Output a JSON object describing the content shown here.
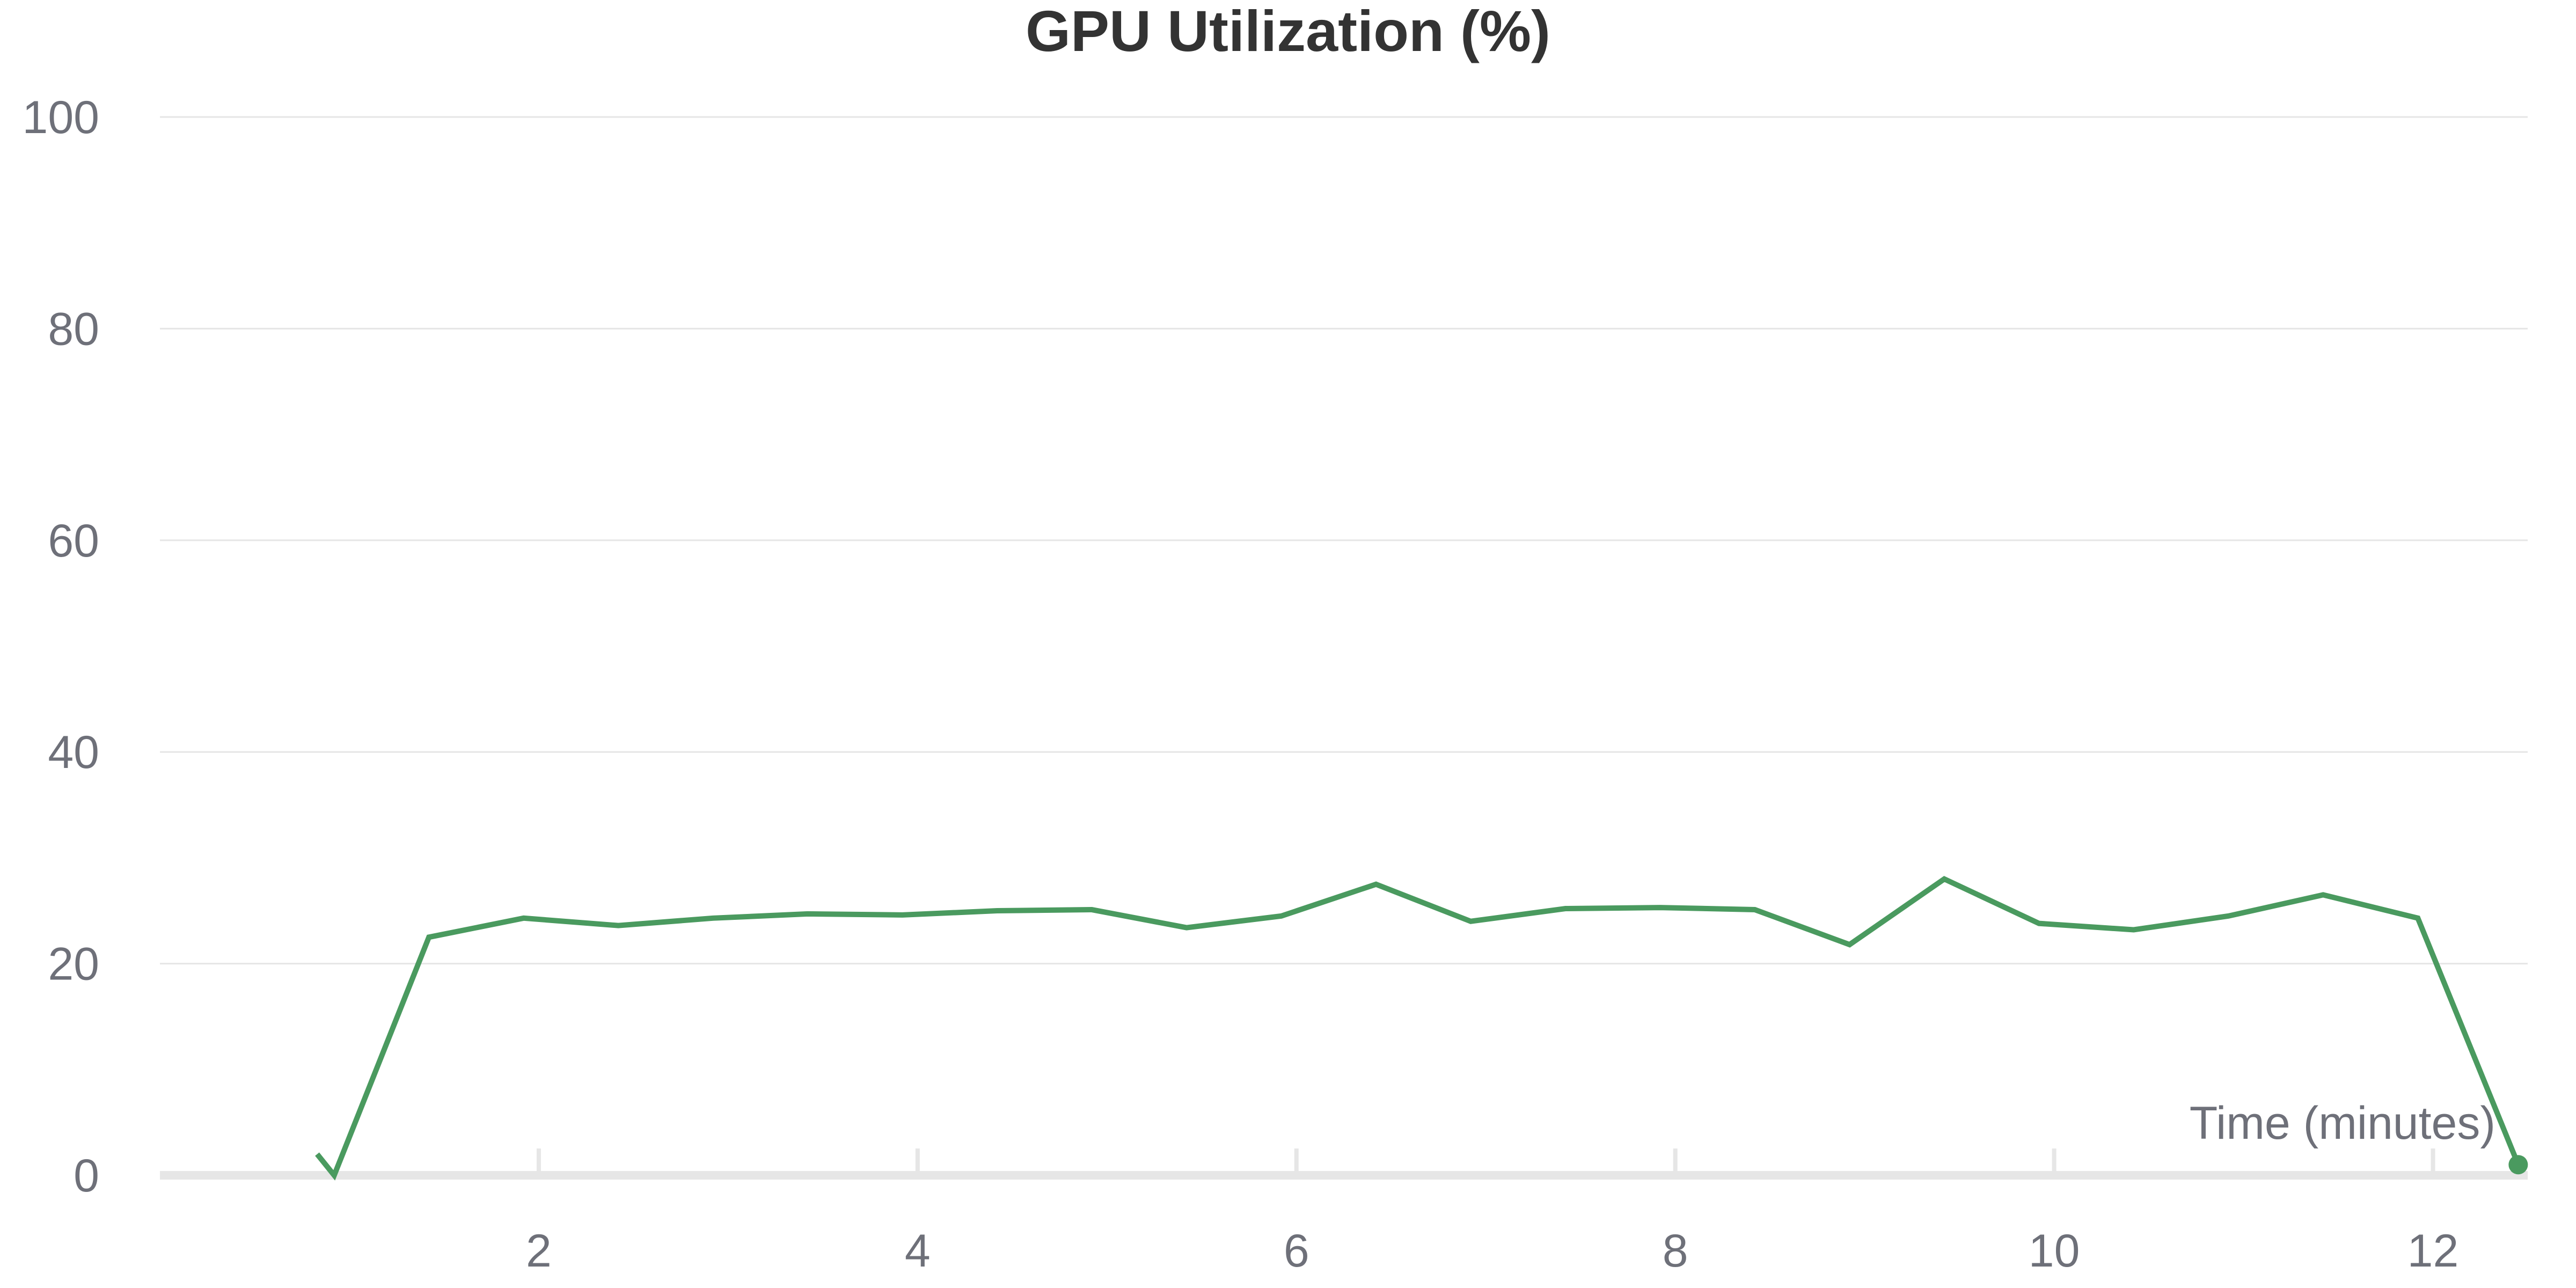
{
  "chart_data": {
    "type": "line",
    "title": "GPU Utilization (%)",
    "xlabel": "Time (minutes)",
    "ylabel": "",
    "xlim": [
      0,
      12.5
    ],
    "ylim": [
      0,
      100
    ],
    "x_ticks": [
      2,
      4,
      6,
      8,
      10,
      12
    ],
    "y_ticks": [
      0,
      20,
      40,
      60,
      80,
      100
    ],
    "grid": true,
    "legend": "none",
    "colors": {
      "series": "#4a9a5f"
    },
    "series": [
      {
        "x": [
          0.83,
          0.92,
          1.42,
          1.92,
          2.42,
          2.92,
          3.42,
          3.92,
          4.42,
          4.92,
          5.42,
          5.92,
          6.42,
          6.92,
          7.42,
          7.92,
          8.42,
          8.92,
          9.42,
          9.92,
          10.42,
          10.92,
          11.42,
          11.92,
          12.45
        ],
        "values": [
          2,
          0,
          22.5,
          24.3,
          23.6,
          24.3,
          24.7,
          24.6,
          25.0,
          25.1,
          23.4,
          24.5,
          27.5,
          24.0,
          25.2,
          25.3,
          25.1,
          21.8,
          28.0,
          23.8,
          23.2,
          24.5,
          26.5,
          24.3,
          1
        ]
      }
    ]
  }
}
